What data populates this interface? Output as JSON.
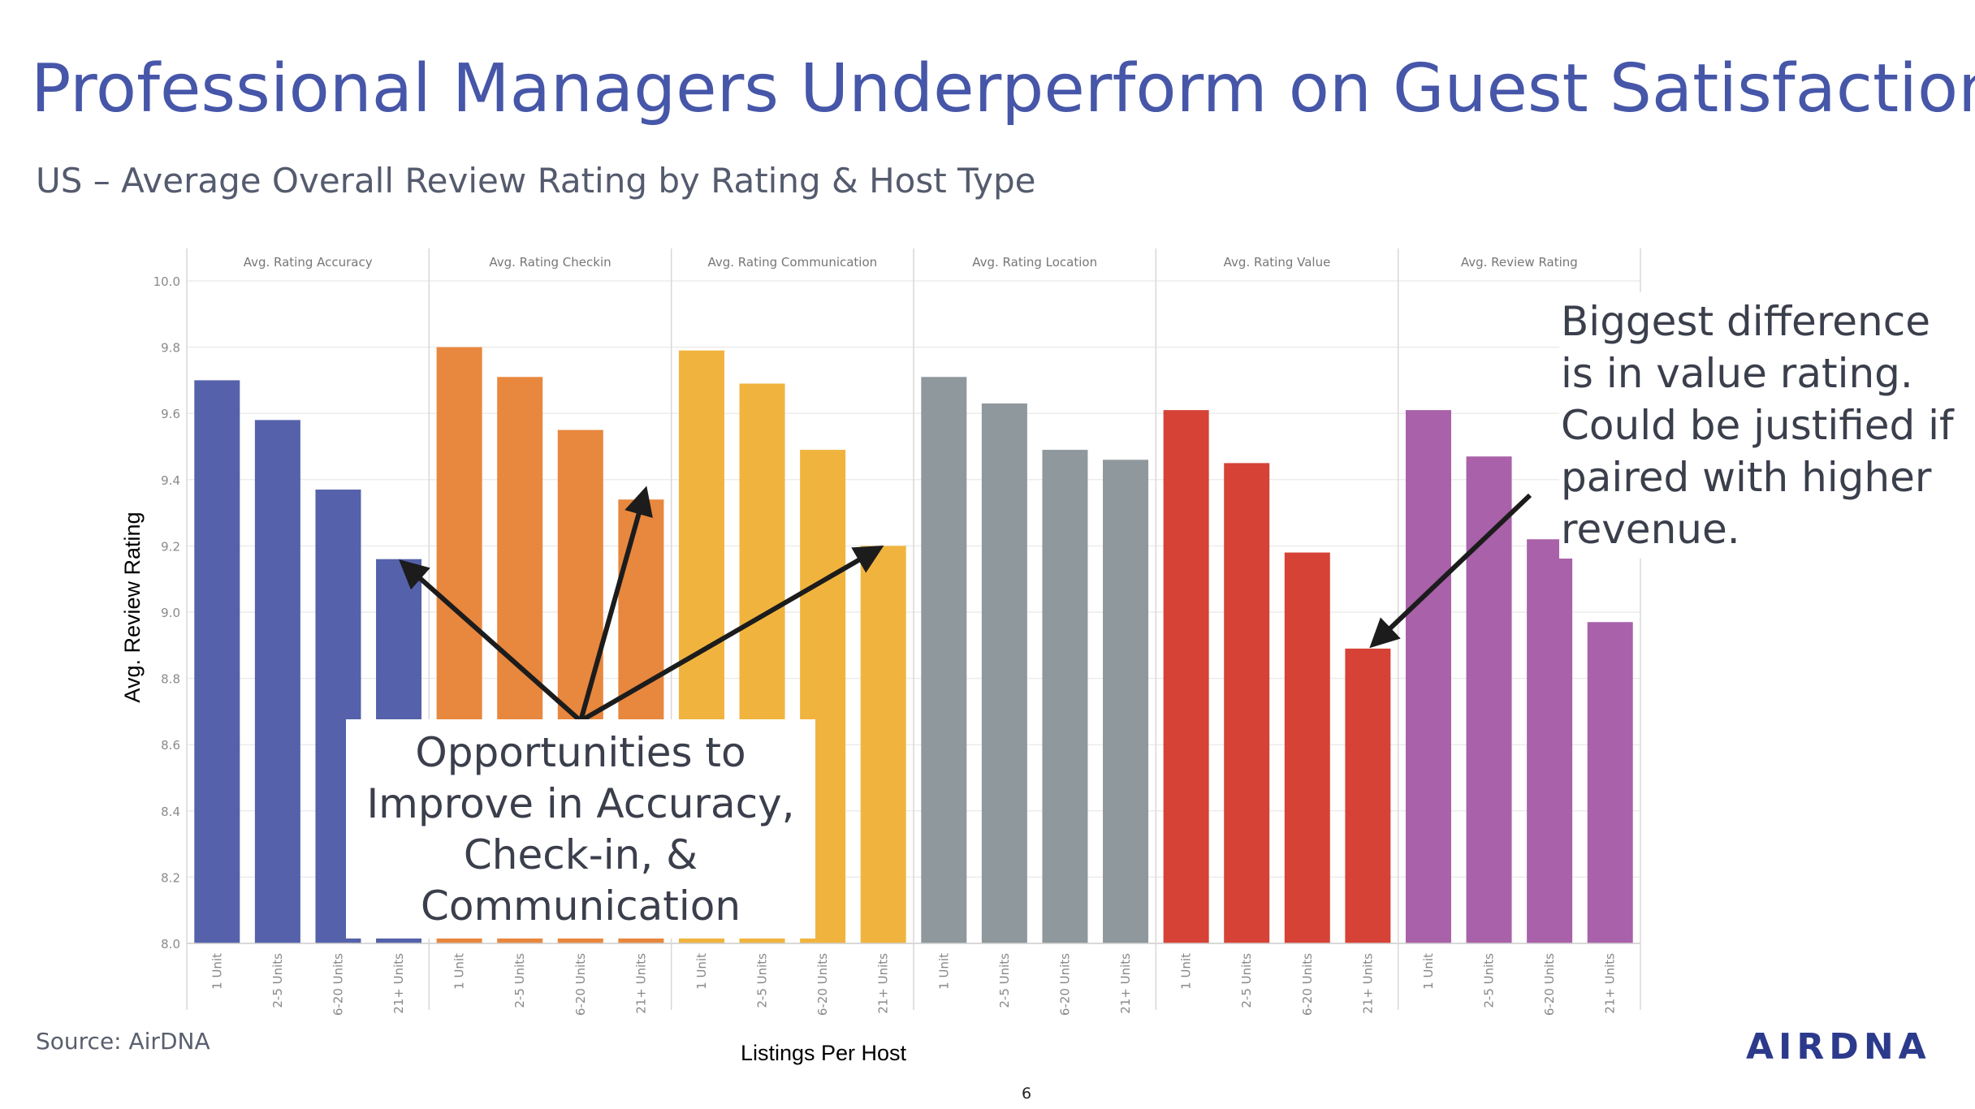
{
  "slide": {
    "title": "Professional Managers Underperform on Guest Satisfaction",
    "subtitle": "US – Average Overall Review Rating by Rating & Host Type",
    "source": "Source: AirDNA",
    "page_number": "6",
    "logo_text": "AIRDNA",
    "callout_right": "Biggest difference is in value rating. Could be justified if paired with higher revenue.",
    "callout_left": "Opportunities to Improve in Accuracy, Check-in, & Communication"
  },
  "chart_data": {
    "type": "bar",
    "ylabel": "Avg. Review Rating",
    "xlabel": "Listings Per Host",
    "ylim": [
      8.0,
      10.0
    ],
    "yticks": [
      "10.0",
      "9.8",
      "9.6",
      "9.4",
      "9.2",
      "9.0",
      "8.8",
      "8.6",
      "8.4",
      "8.2",
      "8.0"
    ],
    "categories": [
      "1 Unit",
      "2-5 Units",
      "6-20 Units",
      "21+ Units"
    ],
    "panels": [
      {
        "name": "Avg. Rating Accuracy",
        "color": "#5561aa",
        "values": [
          9.7,
          9.58,
          9.37,
          9.16
        ]
      },
      {
        "name": "Avg. Rating Checkin",
        "color": "#e8873e",
        "values": [
          9.8,
          9.71,
          9.55,
          9.34
        ]
      },
      {
        "name": "Avg. Rating Communication",
        "color": "#f0b43e",
        "values": [
          9.79,
          9.69,
          9.49,
          9.2
        ]
      },
      {
        "name": "Avg. Rating Location",
        "color": "#8f989c",
        "values": [
          9.71,
          9.63,
          9.49,
          9.46
        ]
      },
      {
        "name": "Avg. Rating Value",
        "color": "#d64336",
        "values": [
          9.61,
          9.45,
          9.18,
          8.89
        ]
      },
      {
        "name": "Avg. Review Rating",
        "color": "#a961aa",
        "values": [
          9.61,
          9.47,
          9.22,
          8.97
        ]
      }
    ]
  }
}
